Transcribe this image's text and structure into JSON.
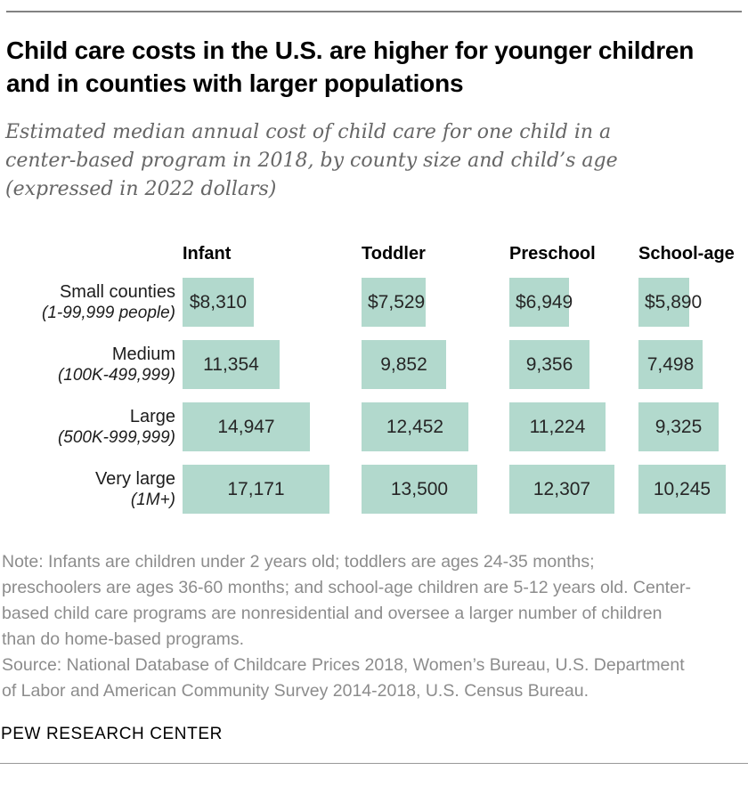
{
  "header": {
    "title": "Child care costs in the U.S. are higher for younger children and in counties with larger populations",
    "subtitle": "Estimated median annual cost of child care for one child in a center-based program in 2018, by county size and child’s age (expressed in 2022 dollars)"
  },
  "chart_data": {
    "type": "bar",
    "orientation": "horizontal",
    "unit": "2022 U.S. dollars",
    "grid": false,
    "legend_position": "none",
    "bar_color": "#b2d9cd",
    "columns": [
      "Infant",
      "Toddler",
      "Preschool",
      "School-age"
    ],
    "rows": [
      {
        "label": "Small counties",
        "sublabel": "(1-99,999 people)",
        "values": [
          8310,
          7529,
          6949,
          5890
        ],
        "display": [
          "$8,310",
          "$7,529",
          "$6,949",
          "$5,890"
        ]
      },
      {
        "label": "Medium",
        "sublabel": "(100K-499,999)",
        "values": [
          11354,
          9852,
          9356,
          7498
        ],
        "display": [
          "11,354",
          "9,852",
          "9,356",
          "7,498"
        ]
      },
      {
        "label": "Large",
        "sublabel": "(500K-999,999)",
        "values": [
          14947,
          12452,
          11224,
          9325
        ],
        "display": [
          "14,947",
          "12,452",
          "11,224",
          "9,325"
        ]
      },
      {
        "label": "Very large",
        "sublabel": "(1M+)",
        "values": [
          17171,
          13500,
          12307,
          10245
        ],
        "display": [
          "17,171",
          "13,500",
          "12,307",
          "10,245"
        ]
      }
    ]
  },
  "note": "Note: Infants are children under 2 years old; toddlers are ages 24-35 months; preschoolers are ages 36-60 months; and school-age children are 5-12 years old. Center-based child care programs are nonresidential and oversee a larger number of children than do home-based programs.",
  "source": "Source: National Database of Childcare Prices 2018, Women’s Bureau, U.S. Department of Labor and American Community Survey 2014-2018, U.S. Census Bureau.",
  "footer": {
    "brand": "PEW RESEARCH CENTER"
  }
}
